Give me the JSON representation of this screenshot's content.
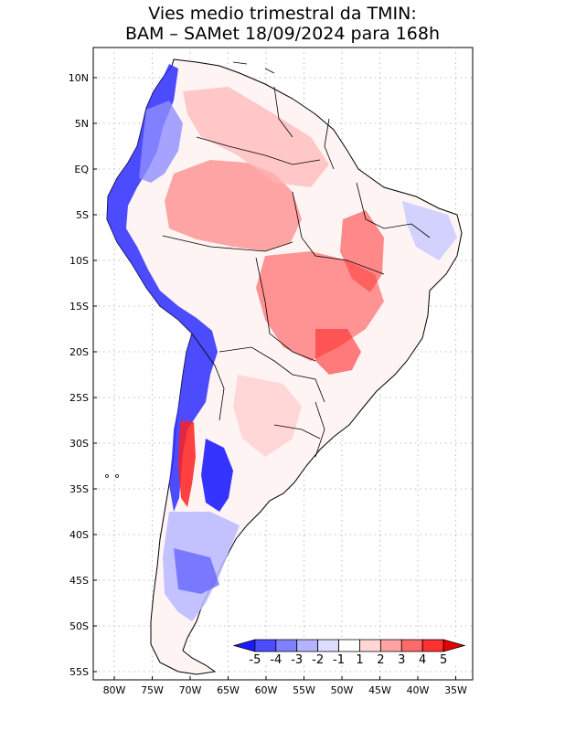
{
  "title": {
    "line1": "Vies medio trimestral da TMIN:",
    "line2": "BAM – SAMet 18/09/2024  para 168h"
  },
  "axes": {
    "lat_ticks": [
      "10N",
      "5N",
      "EQ",
      "5S",
      "10S",
      "15S",
      "20S",
      "25S",
      "30S",
      "35S",
      "40S",
      "45S",
      "50S",
      "55S"
    ],
    "lon_ticks": [
      "80W",
      "75W",
      "70W",
      "65W",
      "60W",
      "55W",
      "50W",
      "45W",
      "40W",
      "35W"
    ],
    "grid": "dotted"
  },
  "colorbar": {
    "labels": [
      "-5",
      "-4",
      "-3",
      "-2",
      "-1",
      "1",
      "2",
      "3",
      "4",
      "5"
    ],
    "colors": [
      "#1a1aff",
      "#4d4dff",
      "#8080ff",
      "#b3b3ff",
      "#dcdcff",
      "#ffffff",
      "#ffd6d6",
      "#ffa3a3",
      "#ff6b6b",
      "#ff3030",
      "#e60000"
    ]
  },
  "map": {
    "region": "South America",
    "variable": "TMIN bias",
    "palette_note": "blue = negative, red = positive"
  }
}
